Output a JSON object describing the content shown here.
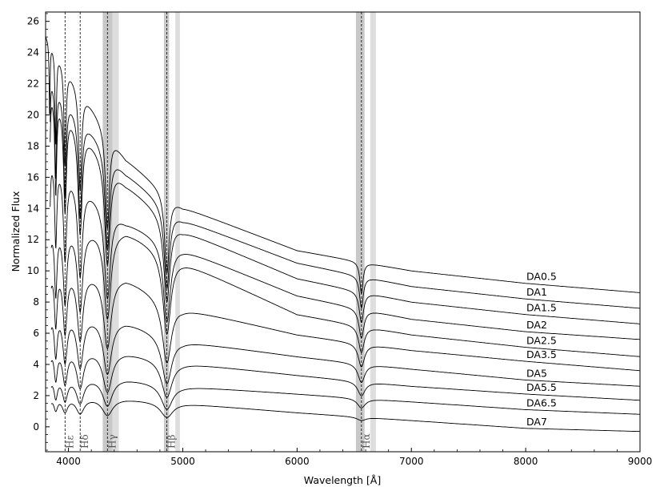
{
  "chart_data": {
    "type": "line",
    "xlabel": "Wavelength [Å]",
    "ylabel": "Normalized Flux",
    "xlim": [
      3800,
      9000
    ],
    "ylim": [
      -1.6,
      26.6
    ],
    "grid": false,
    "x_ticks": [
      4000,
      5000,
      6000,
      7000,
      8000,
      9000
    ],
    "x_tick_labels": [
      "4000",
      "5000",
      "6000",
      "7000",
      "8000",
      "9000"
    ],
    "y_ticks": [
      0,
      2,
      4,
      6,
      8,
      10,
      12,
      14,
      16,
      18,
      20,
      22,
      24,
      26
    ],
    "y_tick_labels": [
      "0",
      "2",
      "4",
      "6",
      "8",
      "10",
      "12",
      "14",
      "16",
      "18",
      "20",
      "22",
      "24",
      "26"
    ],
    "balmer_lines": [
      {
        "label": "Hε",
        "x": 3970
      },
      {
        "label": "Hδ",
        "x": 4102
      },
      {
        "label": "Hγ",
        "x": 4341
      },
      {
        "label": "Hβ",
        "x": 4861
      },
      {
        "label": "Hα",
        "x": 6563
      }
    ],
    "shaded_bands": [
      {
        "x": [
          4300,
          4345
        ],
        "shade": "dark"
      },
      {
        "x": [
          4345,
          4385
        ],
        "shade": "dark"
      },
      {
        "x": [
          4385,
          4440
        ],
        "shade": "light"
      },
      {
        "x": [
          4835,
          4850
        ],
        "shade": "dark"
      },
      {
        "x": [
          4850,
          4880
        ],
        "shade": "dark"
      },
      {
        "x": [
          4935,
          4975
        ],
        "shade": "light"
      },
      {
        "x": [
          6515,
          6560
        ],
        "shade": "dark"
      },
      {
        "x": [
          6560,
          6590
        ],
        "shade": "dark"
      },
      {
        "x": [
          6640,
          6690
        ],
        "shade": "light"
      }
    ],
    "series": [
      {
        "name": "DA0.5",
        "x": [
          3800,
          4500,
          5000,
          6000,
          7000,
          8000,
          9000
        ],
        "y": [
          25.2,
          17.2,
          14.1,
          11.3,
          10.0,
          9.2,
          8.6
        ],
        "edge_x": 3800
      },
      {
        "name": "DA1",
        "x": [
          3840,
          4500,
          5000,
          6000,
          7000,
          8000,
          9000
        ],
        "y": [
          22.5,
          16.3,
          13.3,
          10.5,
          9.0,
          8.2,
          7.6
        ],
        "edge_x": 3840
      },
      {
        "name": "DA1.5",
        "x": [
          3840,
          4500,
          5000,
          6000,
          7000,
          8000,
          9000
        ],
        "y": [
          21.8,
          15.6,
          12.6,
          9.5,
          8.0,
          7.2,
          6.6
        ],
        "edge_x": 3840
      },
      {
        "name": "DA2",
        "x": [
          3840,
          4500,
          5000,
          6000,
          7000,
          8000,
          9000
        ],
        "y": [
          17.5,
          13.2,
          11.4,
          8.4,
          6.9,
          6.1,
          5.6
        ],
        "edge_x": 3840
      },
      {
        "name": "DA2.5",
        "x": [
          3850,
          4500,
          5000,
          6000,
          7000,
          8000,
          9000
        ],
        "y": [
          12.9,
          12.6,
          10.6,
          7.2,
          5.9,
          5.1,
          4.5
        ],
        "edge_x": 3850
      },
      {
        "name": "DA3.5",
        "x": [
          3850,
          4500,
          5000,
          6000,
          7000,
          8000,
          9000
        ],
        "y": [
          10.3,
          9.6,
          7.6,
          5.9,
          4.9,
          4.2,
          3.6
        ],
        "edge_x": 3850
      },
      {
        "name": "DA5",
        "x": [
          3850,
          4500,
          5000,
          6000,
          7000,
          8000,
          9000
        ],
        "y": [
          7.5,
          6.8,
          5.5,
          4.5,
          3.7,
          3.0,
          2.6
        ],
        "edge_x": 3850
      },
      {
        "name": "DA5.5",
        "x": [
          3850,
          4500,
          5000,
          6000,
          7000,
          8000,
          9000
        ],
        "y": [
          5.2,
          4.8,
          4.1,
          3.3,
          2.6,
          2.1,
          1.7
        ],
        "edge_x": 3850
      },
      {
        "name": "DA6.5",
        "x": [
          3850,
          4500,
          5000,
          6000,
          7000,
          8000,
          9000
        ],
        "y": [
          3.3,
          3.1,
          2.6,
          2.1,
          1.6,
          1.1,
          0.8
        ],
        "edge_x": 3850
      },
      {
        "name": "DA7",
        "x": [
          3850,
          4500,
          5000,
          6000,
          7000,
          8000,
          9000
        ],
        "y": [
          2.0,
          1.8,
          1.5,
          0.9,
          0.4,
          -0.1,
          -0.3
        ],
        "edge_x": 3850
      }
    ]
  }
}
